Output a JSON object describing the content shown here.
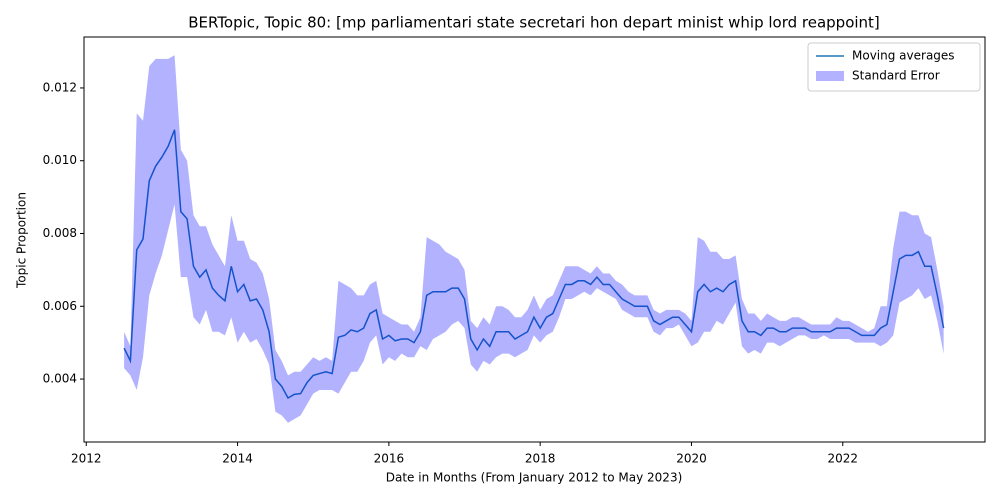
{
  "chart_data": {
    "type": "line",
    "title": "BERTopic, Topic 80: [mp parliamentari state secretari hon depart minist whip lord reappoint]",
    "xlabel": "Date in Months (From January 2012 to May 2023)",
    "ylabel": "Topic Proportion",
    "x": [
      2012.5,
      2012.583,
      2012.667,
      2012.75,
      2012.833,
      2012.917,
      2013.0,
      2013.083,
      2013.167,
      2013.25,
      2013.333,
      2013.417,
      2013.5,
      2013.583,
      2013.667,
      2013.75,
      2013.833,
      2013.917,
      2014.0,
      2014.083,
      2014.167,
      2014.25,
      2014.333,
      2014.417,
      2014.5,
      2014.583,
      2014.667,
      2014.75,
      2014.833,
      2014.917,
      2015.0,
      2015.083,
      2015.167,
      2015.25,
      2015.333,
      2015.417,
      2015.5,
      2015.583,
      2015.667,
      2015.75,
      2015.833,
      2015.917,
      2016.0,
      2016.083,
      2016.167,
      2016.25,
      2016.333,
      2016.417,
      2016.5,
      2016.583,
      2016.667,
      2016.75,
      2016.833,
      2016.917,
      2017.0,
      2017.083,
      2017.167,
      2017.25,
      2017.333,
      2017.417,
      2017.5,
      2017.583,
      2017.667,
      2017.75,
      2017.833,
      2017.917,
      2018.0,
      2018.083,
      2018.167,
      2018.25,
      2018.333,
      2018.417,
      2018.5,
      2018.583,
      2018.667,
      2018.75,
      2018.833,
      2018.917,
      2019.0,
      2019.083,
      2019.167,
      2019.25,
      2019.333,
      2019.417,
      2019.5,
      2019.583,
      2019.667,
      2019.75,
      2019.833,
      2019.917,
      2020.0,
      2020.083,
      2020.167,
      2020.25,
      2020.333,
      2020.417,
      2020.5,
      2020.583,
      2020.667,
      2020.75,
      2020.833,
      2020.917,
      2021.0,
      2021.083,
      2021.167,
      2021.25,
      2021.333,
      2021.417,
      2021.5,
      2021.583,
      2021.667,
      2021.75,
      2021.833,
      2021.917,
      2022.0,
      2022.083,
      2022.167,
      2022.25,
      2022.333,
      2022.417,
      2022.5,
      2022.583,
      2022.667,
      2022.75,
      2022.833,
      2022.917,
      2023.0,
      2023.083,
      2023.167,
      2023.25,
      2023.333
    ],
    "series": [
      {
        "name": "Moving averages",
        "color": "#1f77b4",
        "values": [
          0.00485,
          0.0045,
          0.00755,
          0.00785,
          0.00945,
          0.00985,
          0.0101,
          0.0104,
          0.01085,
          0.0086,
          0.0084,
          0.0071,
          0.0068,
          0.007,
          0.0065,
          0.0063,
          0.00615,
          0.0071,
          0.0064,
          0.0066,
          0.00615,
          0.0062,
          0.0059,
          0.0053,
          0.004,
          0.0038,
          0.00348,
          0.00358,
          0.0036,
          0.0039,
          0.0041,
          0.00415,
          0.0042,
          0.00415,
          0.00515,
          0.0052,
          0.00535,
          0.0053,
          0.0054,
          0.0058,
          0.0059,
          0.0051,
          0.0052,
          0.00505,
          0.0051,
          0.0051,
          0.005,
          0.0053,
          0.0063,
          0.0064,
          0.0064,
          0.0064,
          0.0065,
          0.0065,
          0.0062,
          0.0051,
          0.0048,
          0.0051,
          0.0049,
          0.0053,
          0.0053,
          0.0053,
          0.0051,
          0.0052,
          0.0053,
          0.0057,
          0.0054,
          0.0057,
          0.0058,
          0.0062,
          0.0066,
          0.0066,
          0.0067,
          0.0067,
          0.0066,
          0.0068,
          0.0066,
          0.0066,
          0.0064,
          0.0062,
          0.0061,
          0.006,
          0.006,
          0.006,
          0.0056,
          0.0055,
          0.0056,
          0.0057,
          0.0057,
          0.0055,
          0.0053,
          0.0064,
          0.0066,
          0.0064,
          0.0065,
          0.0064,
          0.0066,
          0.0067,
          0.0056,
          0.0053,
          0.0053,
          0.0052,
          0.0054,
          0.0054,
          0.0053,
          0.0053,
          0.0054,
          0.0054,
          0.0054,
          0.0053,
          0.0053,
          0.0053,
          0.0053,
          0.0054,
          0.0054,
          0.0054,
          0.0053,
          0.0052,
          0.0052,
          0.0052,
          0.0054,
          0.0055,
          0.0064,
          0.0073,
          0.0074,
          0.0074,
          0.0075,
          0.0071,
          0.0071,
          0.0063,
          0.0054
        ]
      },
      {
        "name": "Standard Error",
        "color": "#0000ff",
        "upper": [
          0.0053,
          0.0049,
          0.0113,
          0.0111,
          0.0126,
          0.0128,
          0.0128,
          0.0128,
          0.0129,
          0.0103,
          0.01,
          0.0085,
          0.0082,
          0.0082,
          0.0077,
          0.0074,
          0.0071,
          0.0085,
          0.0078,
          0.0078,
          0.0073,
          0.0072,
          0.0069,
          0.0062,
          0.0048,
          0.0045,
          0.0041,
          0.0042,
          0.0042,
          0.0044,
          0.0046,
          0.0045,
          0.0046,
          0.0045,
          0.0067,
          0.0066,
          0.0065,
          0.0063,
          0.0063,
          0.0066,
          0.0067,
          0.0058,
          0.0057,
          0.0056,
          0.0055,
          0.0055,
          0.0053,
          0.0057,
          0.0079,
          0.0078,
          0.0077,
          0.0075,
          0.0074,
          0.0073,
          0.007,
          0.0056,
          0.0054,
          0.0057,
          0.0055,
          0.006,
          0.006,
          0.0059,
          0.0057,
          0.0057,
          0.0059,
          0.0063,
          0.0059,
          0.0062,
          0.0063,
          0.0067,
          0.0071,
          0.0071,
          0.0071,
          0.007,
          0.0069,
          0.0071,
          0.0069,
          0.0069,
          0.0067,
          0.0066,
          0.0064,
          0.0063,
          0.0063,
          0.0063,
          0.0059,
          0.0058,
          0.0059,
          0.0059,
          0.0059,
          0.0058,
          0.0056,
          0.0079,
          0.0078,
          0.0075,
          0.0075,
          0.0073,
          0.0073,
          0.0074,
          0.0062,
          0.0058,
          0.0058,
          0.0056,
          0.0058,
          0.0057,
          0.0056,
          0.0056,
          0.0057,
          0.0057,
          0.0056,
          0.0055,
          0.0055,
          0.0055,
          0.0055,
          0.0057,
          0.0056,
          0.0056,
          0.0055,
          0.0054,
          0.0053,
          0.0054,
          0.006,
          0.006,
          0.0076,
          0.0086,
          0.0086,
          0.0085,
          0.0085,
          0.008,
          0.0079,
          0.007,
          0.006
        ],
        "lower": [
          0.0043,
          0.0041,
          0.0037,
          0.0046,
          0.0063,
          0.0069,
          0.0074,
          0.0081,
          0.0088,
          0.0068,
          0.0068,
          0.0057,
          0.0055,
          0.0059,
          0.0053,
          0.0053,
          0.0052,
          0.0057,
          0.005,
          0.0053,
          0.005,
          0.0051,
          0.0048,
          0.0044,
          0.0031,
          0.003,
          0.0028,
          0.0029,
          0.003,
          0.0033,
          0.0036,
          0.0037,
          0.0037,
          0.0037,
          0.0036,
          0.0039,
          0.0042,
          0.0042,
          0.0045,
          0.005,
          0.0052,
          0.0044,
          0.0046,
          0.0045,
          0.0047,
          0.0046,
          0.0046,
          0.0049,
          0.0048,
          0.0051,
          0.0052,
          0.0053,
          0.0055,
          0.0056,
          0.0054,
          0.0044,
          0.0042,
          0.0045,
          0.0044,
          0.0046,
          0.0047,
          0.0047,
          0.0046,
          0.0047,
          0.0048,
          0.0052,
          0.005,
          0.0052,
          0.0053,
          0.0057,
          0.0062,
          0.0062,
          0.0063,
          0.0064,
          0.0063,
          0.0065,
          0.0064,
          0.0063,
          0.0062,
          0.0059,
          0.0058,
          0.0057,
          0.0057,
          0.0057,
          0.0053,
          0.0052,
          0.0054,
          0.0054,
          0.0055,
          0.0052,
          0.0049,
          0.005,
          0.0053,
          0.0053,
          0.0056,
          0.0055,
          0.0058,
          0.0061,
          0.0049,
          0.0047,
          0.0048,
          0.0047,
          0.005,
          0.005,
          0.0049,
          0.005,
          0.0051,
          0.0052,
          0.0052,
          0.0051,
          0.0051,
          0.0052,
          0.0051,
          0.0051,
          0.0051,
          0.0051,
          0.005,
          0.005,
          0.005,
          0.005,
          0.0049,
          0.005,
          0.0052,
          0.0061,
          0.0062,
          0.0063,
          0.0065,
          0.0062,
          0.0063,
          0.0056,
          0.0047
        ]
      }
    ],
    "xlim": [
      2011.97,
      2023.88
    ],
    "xticks": [
      2012,
      2014,
      2016,
      2018,
      2020,
      2022
    ],
    "ylim": [
      0.00227,
      0.0134
    ],
    "yticks": [
      0.004,
      0.006,
      0.008,
      {
        "value": 0.01,
        "label": "0.010"
      },
      0.012
    ],
    "legend": "upper right"
  }
}
